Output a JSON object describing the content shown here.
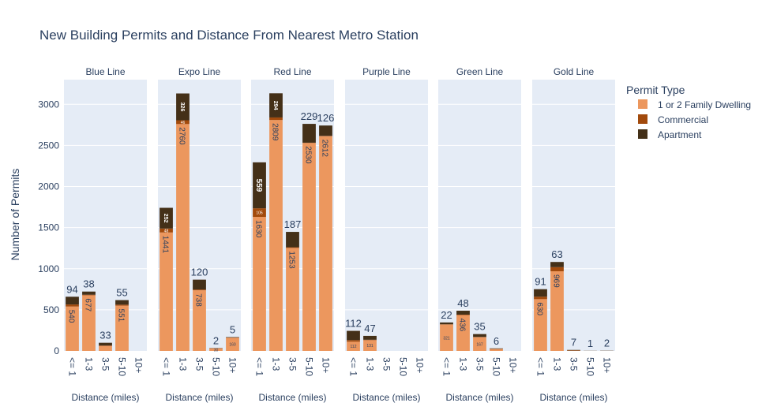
{
  "chart_data": {
    "type": "bar",
    "stacked": true,
    "title": "New Building Permits and Distance From Nearest Metro Station",
    "ylabel": "Number of Permits",
    "xlabel": "Distance (miles)",
    "ylim": [
      0,
      3300
    ],
    "yticks": [
      0,
      500,
      1000,
      1500,
      2000,
      2500,
      3000
    ],
    "grid": true,
    "legend": {
      "title": "Permit Type",
      "placement": "top-right",
      "entries": [
        "1 or 2 Family Dwelling",
        "Commercial",
        "Apartment"
      ]
    },
    "colors": {
      "1 or 2 Family Dwelling": "#ec975e",
      "Commercial": "#a24a0c",
      "Apartment": "#443018",
      "panel_bg": "#e5ecf6",
      "text": "#2a3f5f"
    },
    "categories": [
      "<= 1",
      "1-3",
      "3-5",
      "5-10",
      "10+"
    ],
    "panels": [
      {
        "name": "Blue Line",
        "series": [
          {
            "name": "1 or 2 Family Dwelling",
            "values": [
              540,
              677,
              60,
              551,
              0
            ]
          },
          {
            "name": "Commercial",
            "values": [
              25,
              7,
              6,
              12,
              0
            ]
          },
          {
            "name": "Apartment",
            "values": [
              94,
              38,
              33,
              55,
              0
            ]
          }
        ],
        "labels": [
          {
            "family": "540",
            "commercial": "",
            "apartment": "94"
          },
          {
            "family": "677",
            "commercial": "",
            "apartment": "38"
          },
          {
            "family": "",
            "commercial": "",
            "apartment": "33"
          },
          {
            "family": "551",
            "commercial": "",
            "apartment": "55"
          },
          {
            "family": "",
            "commercial": "",
            "apartment": ""
          }
        ]
      },
      {
        "name": "Expo Line",
        "series": [
          {
            "name": "1 or 2 Family Dwelling",
            "values": [
              1441,
              2760,
              738,
              30,
              160
            ]
          },
          {
            "name": "Commercial",
            "values": [
              48,
              46,
              9,
              3,
              3
            ]
          },
          {
            "name": "Apartment",
            "values": [
              252,
              326,
              120,
              2,
              5
            ]
          }
        ],
        "labels": [
          {
            "family": "1441",
            "commercial": "48",
            "apartment": "252"
          },
          {
            "family": "2760",
            "commercial": "46",
            "apartment": "326"
          },
          {
            "family": "738",
            "commercial": "",
            "apartment": "120"
          },
          {
            "family": "30",
            "commercial": "",
            "apartment": "2"
          },
          {
            "family": "160",
            "commercial": "",
            "apartment": "5"
          }
        ]
      },
      {
        "name": "Red Line",
        "series": [
          {
            "name": "1 or 2 Family Dwelling",
            "values": [
              1630,
              2809,
              1253,
              2530,
              2612
            ]
          },
          {
            "name": "Commercial",
            "values": [
              105,
              31,
              8,
              3,
              4
            ]
          },
          {
            "name": "Apartment",
            "values": [
              559,
              294,
              187,
              229,
              126
            ]
          }
        ],
        "labels": [
          {
            "family": "1630",
            "commercial": "105",
            "apartment": "559"
          },
          {
            "family": "2809",
            "commercial": "",
            "apartment": "294"
          },
          {
            "family": "1253",
            "commercial": "",
            "apartment": "187"
          },
          {
            "family": "2530",
            "commercial": "",
            "apartment": "229"
          },
          {
            "family": "2612",
            "commercial": "",
            "apartment": "126"
          }
        ]
      },
      {
        "name": "Purple Line",
        "series": [
          {
            "name": "1 or 2 Family Dwelling",
            "values": [
              112,
              131,
              0,
              0,
              0
            ]
          },
          {
            "name": "Commercial",
            "values": [
              20,
              5,
              0,
              0,
              0
            ]
          },
          {
            "name": "Apartment",
            "values": [
              112,
              47,
              0,
              0,
              0
            ]
          }
        ],
        "labels": [
          {
            "family": "112",
            "commercial": "",
            "apartment": "112"
          },
          {
            "family": "131",
            "commercial": "",
            "apartment": "47"
          },
          {
            "family": "",
            "commercial": "",
            "apartment": ""
          },
          {
            "family": "",
            "commercial": "",
            "apartment": ""
          },
          {
            "family": "",
            "commercial": "",
            "apartment": ""
          }
        ]
      },
      {
        "name": "Green Line",
        "series": [
          {
            "name": "1 or 2 Family Dwelling",
            "values": [
              321,
              436,
              167,
              25,
              0
            ]
          },
          {
            "name": "Commercial",
            "values": [
              3,
              5,
              3,
              0,
              0
            ]
          },
          {
            "name": "Apartment",
            "values": [
              22,
              48,
              35,
              6,
              0
            ]
          }
        ],
        "labels": [
          {
            "family": "321",
            "commercial": "",
            "apartment": "22"
          },
          {
            "family": "436",
            "commercial": "",
            "apartment": "48"
          },
          {
            "family": "167",
            "commercial": "",
            "apartment": "35"
          },
          {
            "family": "",
            "commercial": "",
            "apartment": "6"
          },
          {
            "family": "",
            "commercial": "",
            "apartment": ""
          }
        ]
      },
      {
        "name": "Gold Line",
        "series": [
          {
            "name": "1 or 2 Family Dwelling",
            "values": [
              630,
              969,
              5,
              1,
              1
            ]
          },
          {
            "name": "Commercial",
            "values": [
              30,
              50,
              0,
              0,
              0
            ]
          },
          {
            "name": "Apartment",
            "values": [
              91,
              63,
              7,
              1,
              2
            ]
          }
        ],
        "labels": [
          {
            "family": "630",
            "commercial": "",
            "apartment": "91"
          },
          {
            "family": "969",
            "commercial": "",
            "apartment": "63"
          },
          {
            "family": "",
            "commercial": "",
            "apartment": "7"
          },
          {
            "family": "",
            "commercial": "",
            "apartment": "1"
          },
          {
            "family": "",
            "commercial": "",
            "apartment": "2"
          }
        ]
      }
    ]
  }
}
